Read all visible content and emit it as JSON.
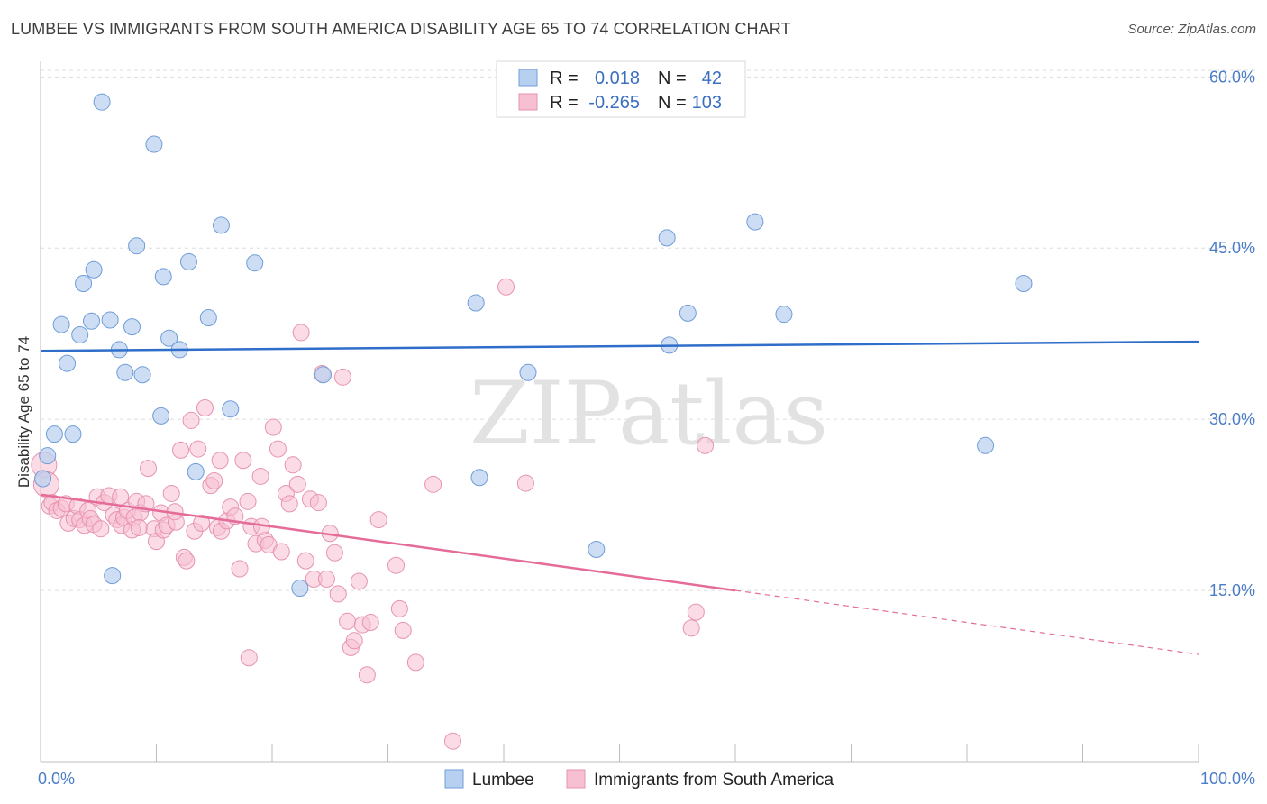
{
  "title": "LUMBEE VS IMMIGRANTS FROM SOUTH AMERICA DISABILITY AGE 65 TO 74 CORRELATION CHART",
  "source": "Source: ZipAtlas.com",
  "watermark": "ZIPatlas",
  "colors": {
    "lumbee_fill": "#b8d0f0",
    "lumbee_stroke": "#6f9cd8",
    "lumbee_line": "#2f6ec9",
    "sa_fill": "#f7c0d2",
    "sa_stroke": "#e693b0",
    "sa_line": "#e56b98",
    "axis_text": "#4a7cc7",
    "grid": "#dddddd"
  },
  "legend": {
    "rows": [
      {
        "r_label": "R =",
        "r_value": "0.018",
        "n_label": "N =",
        "n_value": "42"
      },
      {
        "r_label": "R =",
        "r_value": "-0.265",
        "n_label": "N =",
        "n_value": "103"
      }
    ]
  },
  "bottom_legend": [
    "Lumbee",
    "Immigrants from South America"
  ],
  "chart_data": {
    "type": "scatter",
    "title": "LUMBEE VS IMMIGRANTS FROM SOUTH AMERICA DISABILITY AGE 65 TO 74 CORRELATION CHART",
    "xlabel": "",
    "ylabel": "Disability Age 65 to 74",
    "xlim": [
      0,
      100
    ],
    "ylim": [
      0,
      62
    ],
    "x_ticks": [
      "0.0%",
      "100.0%"
    ],
    "y_ticks": [
      {
        "value": 15,
        "label": "15.0%"
      },
      {
        "value": 30,
        "label": "30.0%"
      },
      {
        "value": 45,
        "label": "45.0%"
      },
      {
        "value": 60,
        "label": "60.0%"
      }
    ],
    "grid": true,
    "legend_position": "top-center",
    "series": [
      {
        "name": "Lumbee",
        "points": [
          [
            0.2,
            24.8
          ],
          [
            0.6,
            26.8
          ],
          [
            1.2,
            28.7
          ],
          [
            1.8,
            38.3
          ],
          [
            2.3,
            34.9
          ],
          [
            2.8,
            28.7
          ],
          [
            3.4,
            37.4
          ],
          [
            3.7,
            41.9
          ],
          [
            4.4,
            38.6
          ],
          [
            4.6,
            43.1
          ],
          [
            5.3,
            57.8
          ],
          [
            6.0,
            38.7
          ],
          [
            6.2,
            16.3
          ],
          [
            6.8,
            36.1
          ],
          [
            7.3,
            34.1
          ],
          [
            7.9,
            38.1
          ],
          [
            8.3,
            45.2
          ],
          [
            8.8,
            33.9
          ],
          [
            9.8,
            54.1
          ],
          [
            10.4,
            30.3
          ],
          [
            10.6,
            42.5
          ],
          [
            11.1,
            37.1
          ],
          [
            12.0,
            36.1
          ],
          [
            12.8,
            43.8
          ],
          [
            13.4,
            25.4
          ],
          [
            14.5,
            38.9
          ],
          [
            15.6,
            47.0
          ],
          [
            16.4,
            30.9
          ],
          [
            18.5,
            43.7
          ],
          [
            22.4,
            15.2
          ],
          [
            24.4,
            33.9
          ],
          [
            37.6,
            40.2
          ],
          [
            37.9,
            24.9
          ],
          [
            42.1,
            34.1
          ],
          [
            48.0,
            18.6
          ],
          [
            54.1,
            45.9
          ],
          [
            54.3,
            36.5
          ],
          [
            55.9,
            39.3
          ],
          [
            61.7,
            47.3
          ],
          [
            64.2,
            39.2
          ],
          [
            81.6,
            27.7
          ],
          [
            84.9,
            41.9
          ]
        ],
        "trend": {
          "x": [
            0,
            100
          ],
          "y": [
            36.0,
            36.8
          ]
        }
      },
      {
        "name": "Immigrants from South America",
        "points": [
          [
            0.3,
            26.0
          ],
          [
            0.5,
            24.3
          ],
          [
            0.8,
            22.4
          ],
          [
            1.0,
            22.7
          ],
          [
            1.4,
            22.0
          ],
          [
            1.8,
            22.2
          ],
          [
            2.2,
            22.6
          ],
          [
            2.4,
            20.9
          ],
          [
            2.9,
            21.3
          ],
          [
            3.2,
            22.4
          ],
          [
            3.4,
            21.2
          ],
          [
            3.8,
            20.7
          ],
          [
            4.1,
            22.0
          ],
          [
            4.3,
            21.3
          ],
          [
            4.6,
            20.8
          ],
          [
            4.9,
            23.2
          ],
          [
            5.2,
            20.4
          ],
          [
            5.5,
            22.7
          ],
          [
            5.9,
            23.3
          ],
          [
            6.3,
            21.6
          ],
          [
            6.6,
            21.2
          ],
          [
            7.0,
            20.7
          ],
          [
            7.2,
            21.4
          ],
          [
            7.5,
            22.0
          ],
          [
            7.9,
            20.3
          ],
          [
            8.1,
            21.4
          ],
          [
            8.3,
            22.8
          ],
          [
            8.6,
            21.8
          ],
          [
            9.1,
            22.6
          ],
          [
            9.3,
            25.7
          ],
          [
            9.8,
            20.4
          ],
          [
            10.0,
            19.3
          ],
          [
            10.4,
            21.8
          ],
          [
            10.6,
            20.3
          ],
          [
            10.9,
            20.7
          ],
          [
            11.3,
            23.5
          ],
          [
            11.7,
            21.0
          ],
          [
            12.1,
            27.3
          ],
          [
            12.4,
            17.9
          ],
          [
            12.6,
            17.6
          ],
          [
            13.0,
            29.9
          ],
          [
            13.3,
            20.2
          ],
          [
            13.6,
            27.4
          ],
          [
            13.9,
            20.9
          ],
          [
            14.2,
            31.0
          ],
          [
            14.7,
            24.2
          ],
          [
            15.0,
            24.6
          ],
          [
            15.3,
            20.5
          ],
          [
            15.6,
            20.2
          ],
          [
            16.1,
            21.1
          ],
          [
            16.4,
            22.3
          ],
          [
            16.8,
            21.5
          ],
          [
            17.2,
            16.9
          ],
          [
            17.5,
            26.4
          ],
          [
            17.9,
            22.8
          ],
          [
            18.2,
            20.6
          ],
          [
            18.6,
            19.1
          ],
          [
            19.0,
            25.0
          ],
          [
            19.4,
            19.4
          ],
          [
            19.7,
            19.0
          ],
          [
            20.1,
            29.3
          ],
          [
            20.5,
            27.4
          ],
          [
            20.8,
            18.4
          ],
          [
            21.2,
            23.5
          ],
          [
            21.5,
            22.6
          ],
          [
            21.8,
            26.0
          ],
          [
            22.2,
            24.3
          ],
          [
            22.5,
            37.6
          ],
          [
            22.9,
            17.6
          ],
          [
            23.3,
            23.0
          ],
          [
            23.6,
            16.0
          ],
          [
            24.0,
            22.7
          ],
          [
            24.3,
            34.0
          ],
          [
            24.7,
            16.0
          ],
          [
            25.0,
            20.0
          ],
          [
            25.4,
            18.3
          ],
          [
            25.7,
            14.7
          ],
          [
            26.1,
            33.7
          ],
          [
            26.5,
            12.3
          ],
          [
            26.8,
            10.0
          ],
          [
            27.1,
            10.6
          ],
          [
            27.5,
            15.8
          ],
          [
            27.8,
            12.0
          ],
          [
            28.2,
            7.6
          ],
          [
            28.5,
            12.2
          ],
          [
            29.2,
            21.2
          ],
          [
            30.7,
            17.2
          ],
          [
            31.0,
            13.4
          ],
          [
            31.3,
            11.5
          ],
          [
            32.4,
            8.7
          ],
          [
            33.9,
            24.3
          ],
          [
            35.6,
            1.8
          ],
          [
            40.2,
            41.6
          ],
          [
            41.9,
            24.4
          ],
          [
            56.2,
            11.7
          ],
          [
            56.6,
            13.1
          ],
          [
            57.4,
            27.7
          ],
          [
            18.0,
            9.1
          ],
          [
            11.6,
            21.9
          ],
          [
            6.9,
            23.2
          ],
          [
            8.5,
            20.5
          ],
          [
            19.1,
            20.6
          ],
          [
            15.5,
            26.4
          ]
        ],
        "trend": {
          "x": [
            0,
            60
          ],
          "y": [
            23.4,
            15.0
          ]
        },
        "trend_dashed": {
          "x": [
            60,
            100
          ],
          "y": [
            15.0,
            9.4
          ]
        }
      }
    ]
  }
}
